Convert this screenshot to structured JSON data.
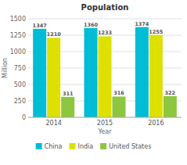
{
  "chart_data": {
    "type": "bar",
    "title": "Population",
    "xlabel": "Year",
    "ylabel": "Million",
    "categories": [
      "2014",
      "2015",
      "2016"
    ],
    "series": [
      {
        "name": "China",
        "values": [
          1347,
          1360,
          1374
        ],
        "color": "#00bcd4"
      },
      {
        "name": "India",
        "values": [
          1210,
          1233,
          1255
        ],
        "color": "#dde000"
      },
      {
        "name": "United States",
        "values": [
          311,
          316,
          322
        ],
        "color": "#8dc63f"
      }
    ],
    "ylim": [
      0,
      1500
    ],
    "yticks": [
      0,
      250,
      500,
      750,
      1000,
      1250,
      1500
    ],
    "grid": true,
    "data_labels": true,
    "legend": "bottom"
  }
}
